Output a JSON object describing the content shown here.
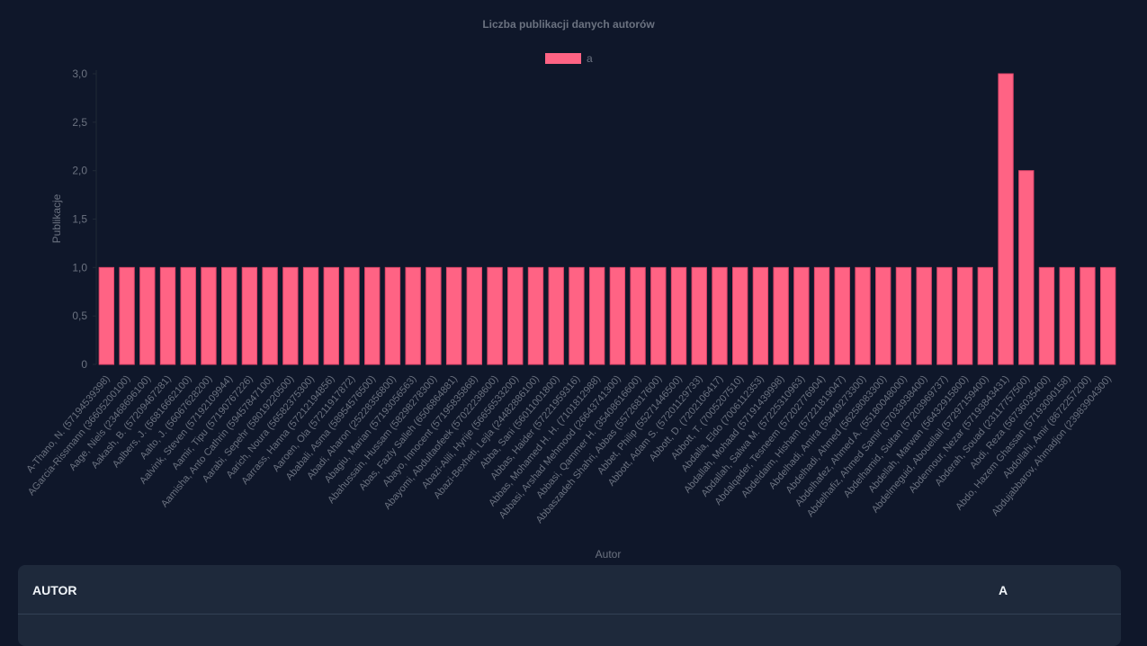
{
  "chart_data": {
    "type": "bar",
    "title": "Liczba publikacji danych autorów",
    "x_label": "Autor",
    "y_label": "Publikacje",
    "categories": [
      "A-Thano, N. (57194539398)",
      "AGarcia-Rissmann (36605200100)",
      "Aage, Niels (23468696100)",
      "Aakash, B. (57209467281)",
      "Aalbers, J. (56816662100)",
      "Aalto, J. (56067628200)",
      "Aalvink, Steven (57192109944)",
      "Aamir, Tipu (57190767226)",
      "Aamisha, Anto Cathrin (59457847100)",
      "Aarabi, Sepehr (58019220500)",
      "Aarich, Noura (56582375300)",
      "Aarrass, Hanna (57212194856)",
      "Aaroen, Ola (57211917872)",
      "Ababali, Asma (58954576500)",
      "Abadi, Aharon (25228356800)",
      "Abagiu, Marian (57193056563)",
      "Abahussain, Hussam (58298278300)",
      "Abas, Fazly Salleh (6506864881)",
      "Abayo, Innocent (57195835868)",
      "Abayomi, Abdultaofeek (57022238600)",
      "Abazi-Alili, Hyrije (56656533200)",
      "Abazi-Bexheti, Lejla (24482886100)",
      "Abba, Sani (56011001800)",
      "Abbas, Haider (57221959316)",
      "Abbas, Mohamed H. H. (7101812988)",
      "Abbasi, Arshad Mehmood (26643741300)",
      "Abbasi, Qammer H. (35408616600)",
      "Abbaszadeh Shahri, Abbas (55726817600)",
      "Abbet, Philip (55271446500)",
      "Abbott, Adam S. (57201129733)",
      "Abbott, D. (7202106417)",
      "Abbott, T. (7005207510)",
      "Abdalla, Eldo (7006112353)",
      "Abdallah, Mohaad (57191439998)",
      "Abdallah, Salwa M. (57225310963)",
      "Abdalqader, Tesneem (57202776904)",
      "Abdeldaim, Hisham (57221819047)",
      "Abdelhadi, Amira (59449273300)",
      "Abdelhadi, Ahmed (56258083300)",
      "Abdelhafez, Ahmed A. (55180048000)",
      "Abdelhafiz, Ahmed Samir (57033938400)",
      "Abdelhamid, Sultan (57203969737)",
      "Abdellah, Marwan (56432915800)",
      "Abdelmeguid, Abouellail (57297159400)",
      "Abdennour, Nezar (57193843431)",
      "Abderah, Souad (23117757500)",
      "Abdi, Reza (56736035400)",
      "Abdo, Hazem Ghassan (57193090158)",
      "Abdollahi, Amir (8672257200)",
      "Abdujabbarov, Ahmadjon (23983904300)"
    ],
    "series": [
      {
        "name": "a",
        "color": "#ff6384",
        "values": [
          1,
          1,
          1,
          1,
          1,
          1,
          1,
          1,
          1,
          1,
          1,
          1,
          1,
          1,
          1,
          1,
          1,
          1,
          1,
          1,
          1,
          1,
          1,
          1,
          1,
          1,
          1,
          1,
          1,
          1,
          1,
          1,
          1,
          1,
          1,
          1,
          1,
          1,
          1,
          1,
          1,
          1,
          1,
          1,
          3,
          2,
          1,
          1,
          1,
          1
        ]
      }
    ],
    "ylim": [
      0,
      3
    ],
    "yticks": [
      0,
      {
        "value": 0.5,
        "label": "0,5"
      },
      {
        "value": 1,
        "label": "1,0"
      },
      {
        "value": 1.5,
        "label": "1,5"
      },
      {
        "value": 2,
        "label": "2,0"
      },
      {
        "value": 2.5,
        "label": "2,5"
      },
      {
        "value": 3,
        "label": "3,0"
      }
    ],
    "grid": false,
    "legend": "top"
  },
  "table": {
    "headers": [
      "AUTOR",
      "A"
    ]
  }
}
